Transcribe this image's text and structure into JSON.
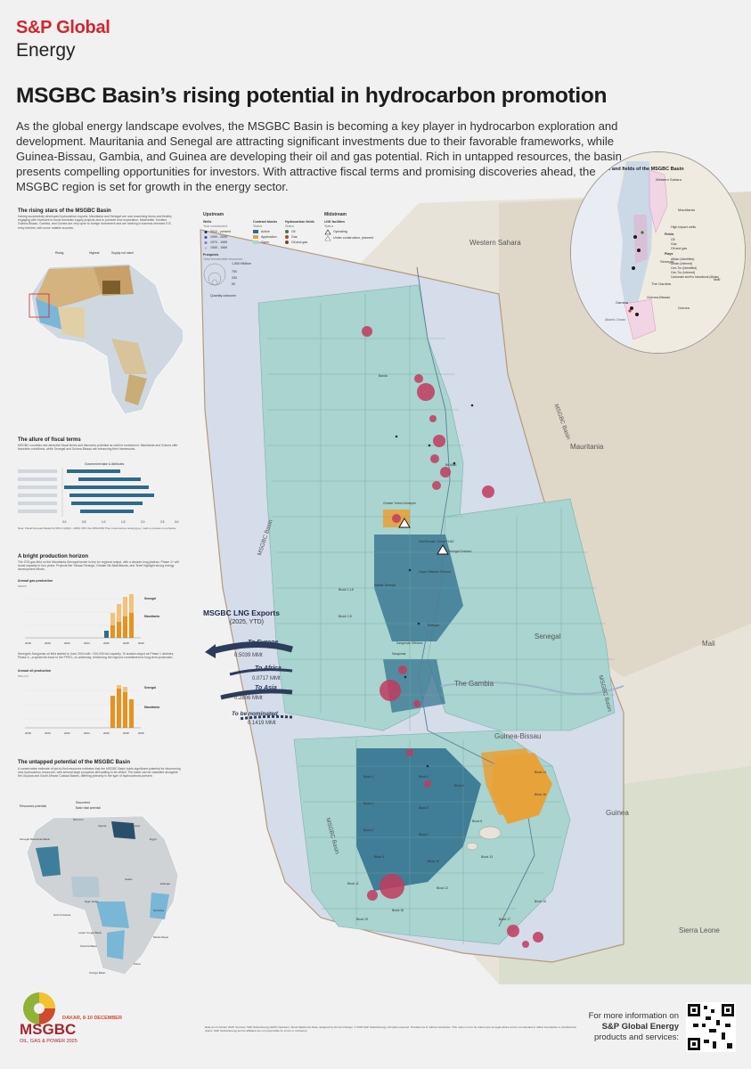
{
  "brand": {
    "name_line1": "S&P Global",
    "name_line2": "Energy"
  },
  "title": "MSGBC Basin’s rising potential in hydrocarbon promotion",
  "intro": "As the global energy landscape evolves, the MSGBC Basin is becoming a key player in hydrocarbon exploration and development. Mauritania and Senegal are attracting significant investments due to their favorable frameworks, while Guinea-Bissau, Gambia, and Guinea are developing their oil and gas potential. Rich in untapped resources, the basin presents compelling opportunities for investors. With attractive fiscal terms and promising discoveries ahead, the MSGBC region is set for growth in the energy sector.",
  "left_panel": {
    "rising_stars": {
      "heading": "The rising stars of the MSGBC Basin",
      "body": "Having successfully developed hydrocarbon exports, Mauritania and Senegal are now examining terms and flexibly engaging with investors to boost domestic supply projects and to promote new exploration. Meanwhile, frontiers Guinea-Bissau, Gambia, and Guinea are very open to foreign investment and are seeking to harness renewed IOC entry interest, with some notable success.",
      "legend_rising": "Rising",
      "legend_highest": "Highest",
      "legend_supply_not_rated": "Supply not rated"
    },
    "fiscal": {
      "heading": "The allure of fiscal terms",
      "body": "MSGBC countries see attractive fiscal terms and discovery potential as vital for investment. Mauritania and Guinea offer favorable conditions, while Senegal and Guinea-Bissau are enhancing their frameworks.",
      "axis_title": "Government take & Attributes",
      "axis_ticks": [
        "0.0",
        "0.5",
        "1.0",
        "1.5",
        "2.0",
        "2.5",
        "3.0"
      ],
      "note": "Note: Fiscal Forecast Model for IPR in Q4Q4 - 2025). IPR: the OPR/OPH Thai, found and ex ante/grg ex, mark a process on enhance."
    },
    "production": {
      "heading": "A bright production horizon",
      "body": "The GTA gas field on the Mauritania-Senegal border is key for regional output, with a decade-long plateau. Phase 1+ will boost capacity in four years. Projects like Yakaar-Teranga, Greater Bir Allah/Banda, and Tevet highlight strong energy development efforts.",
      "chart1_title": "Annual gas production",
      "chart1_unit": "MMcf/d",
      "chart2_text": "Senegal’s Sangomar oil field started in June 2024 with ~100,000 b/d capacity. To sustain output as Phase 1 declines, Phase 2—a splash tie-back to the FPSO—is underway, reinforcing the region’s commitment to long-term production.",
      "chart2_title": "Annual oil production",
      "chart2_unit": "000s b/d",
      "x_ticks": [
        "2018",
        "2020",
        "2022",
        "2024",
        "2026",
        "2028",
        "2030"
      ],
      "legend_senegal": "Senegal",
      "legend_mauritania": "Mauritania"
    },
    "untapped": {
      "heading": "The untapped potential of the MSGBC Basin",
      "body": "A conservative estimate of yet-to-find resources indicates that the MSGBC Basin holds significant potential for discovering new hydrocarbon resources, with several large prospects still waiting to be drilled. The basin can be classified alongside the Guyana and South African Coastal Basins, differing primarily in the type of hydrocarbons present.",
      "legend_title": "Resources potential",
      "legend_discovered": "Discovered",
      "legend_ytf": "Basin total potential",
      "labels": [
        "Senegal Mauritania Basin",
        "Niger Delta",
        "Gulf of Guinea",
        "Lower Congo Basin",
        "Kwanza Basin",
        "Orange Basin",
        "Karoo",
        "Morocco",
        "Algeria",
        "Libya",
        "Egypt",
        "Ethiopia",
        "Sudan",
        "Tanzania",
        "Mozambique"
      ]
    }
  },
  "map": {
    "legend": {
      "upstream": "Upstream",
      "wells": "Wells",
      "wells_sub": "Year constructed",
      "wells_items": [
        "2010 - present",
        "1990 - 2009",
        "1970 - 1989",
        "1950 - 1969"
      ],
      "prospects": "Prospects",
      "prospects_sub": "Total recoverable resources",
      "prospect_sizes": [
        "1,500 MMboe",
        "750",
        "250",
        "50"
      ],
      "quantity_unknown": "Quantity unknown",
      "contract_blocks": "Contract blocks",
      "contract_status": "Status",
      "contract_items": [
        "Active",
        "Application",
        "Open"
      ],
      "hydrocarbon_fields": "Hydrocarbon fields",
      "hc_items": [
        "Oil",
        "Gas",
        "Oil and gas"
      ],
      "midstream": "Midstream",
      "lng": "LNG facilities",
      "lng_status": "Status",
      "lng_items": [
        "Operating",
        "Under construction, planned"
      ]
    },
    "countries": [
      "Western Sahara",
      "Mauritania",
      "Senegal",
      "The Gambia",
      "Guinea-Bissau",
      "Guinea",
      "Mali",
      "Sierra Leone"
    ],
    "basin_labels": [
      "MSGBC Basin",
      "MSGBC Basin",
      "MSGBC Basin",
      "MSGBC Basin"
    ],
    "facility_labels": [
      "Gimi/Greater Tortue FLNG",
      "Senegal Onshore",
      "Yakaar-Teranga",
      "Sangomar",
      "Greater Tortue Ahmeyim",
      "Banda",
      "Bir Allah"
    ],
    "block_labels": [
      "Block C-18",
      "Block C-8",
      "Cayar Offshore Profond",
      "Rufisque",
      "Sangomar Offshore",
      "Block 1",
      "Block 2",
      "Block 3",
      "Block 4",
      "Block 5",
      "Block 6",
      "Block 7",
      "Block 8",
      "Block 9",
      "Block 10",
      "Block 11",
      "Block 12",
      "Block 13",
      "Block 14",
      "Block 15",
      "Block 16",
      "Block 17",
      "Block 18",
      "Block 19"
    ],
    "exports": {
      "title": "MSGBC LNG Exports",
      "subtitle": "(2025, YTD)",
      "items": [
        {
          "dest": "To Europe",
          "value": "0.5039 MMt"
        },
        {
          "dest": "To Africa",
          "value": "0.0717 MMt"
        },
        {
          "dest": "To Asia",
          "value": "0.2806 MMt"
        },
        {
          "dest": "To be nominated",
          "value": "0.1419 MMt"
        }
      ]
    },
    "inset": {
      "title": "Plays and fields of the MSGBC Basin",
      "countries": [
        "Western Sahara",
        "Mauritania",
        "Senegal",
        "The Gambia",
        "Mali",
        "Guinea-Bissau",
        "Guinea",
        "Gambia",
        "Atlantic Ocean"
      ],
      "legend": {
        "high_impact": "High impact wells",
        "fields": "Fields",
        "field_items": [
          "Oil",
          "Gas",
          "Oil and gas"
        ],
        "plays": "Plays",
        "play_items": [
          "Albian (Identified)",
          "Albian (Inferred)",
          "Cen-Tur (Identified)",
          "Cen-Tur (Inferred)",
          "Carbonate shelf to transitional (Albian)"
        ]
      }
    },
    "colors": {
      "active": "#2e6d8c",
      "application": "#e8a23a",
      "open": "#a9d4cf",
      "prospect": "#c23a5e",
      "ocean": "#dde4ef"
    }
  },
  "footer": {
    "event_date": "DAKAR, 8-10 DECEMBER",
    "event_name": "MSGBC",
    "event_sub": "OIL, GAS & POWER 2025",
    "source": "Data as of October 2025. Sources: S&P Global Energy EDIN Upstream, Wood Mackenzie Data, designed by Dumont Design. © 2025 S&P Global Energy. All rights reserved. Provided 'as is' without warranties. This map is not to be relied upon as legal advice and is not intended to reflect boundaries or jurisdictional claims. S&P Global Energy and its affiliates are not responsible for errors or omissions.",
    "more_info_1": "For more information on",
    "more_info_2": "S&P Global Energy",
    "more_info_3": "products and services:"
  }
}
